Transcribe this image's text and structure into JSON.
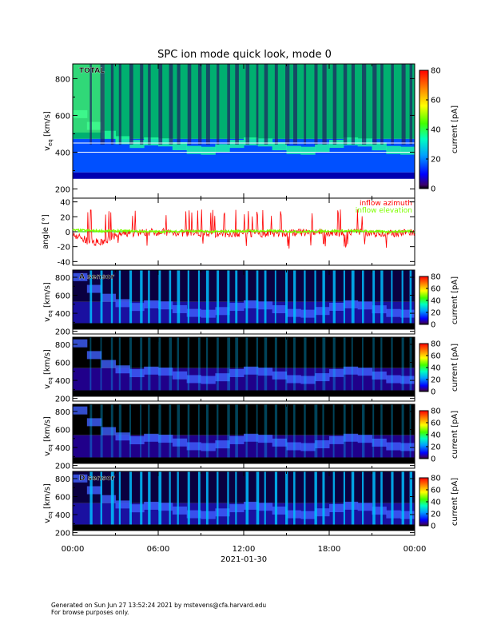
{
  "title": "SPC ion mode quick look, mode 0",
  "footer": {
    "line1": "Generated on Sun Jun 27 13:52:24 2021 by mstevens@cfa.harvard.edu",
    "line2": "For browse purposes only."
  },
  "time_axis": {
    "ticks": [
      "00:00",
      "06:00",
      "12:00",
      "18:00",
      "00:00"
    ],
    "date_label": "2021-01-30",
    "range_hours": [
      0,
      24
    ]
  },
  "colors": {
    "inflow_azimuth": "#ff0000",
    "inflow_elevation": "#7fff00",
    "reference_line": "#00cc00"
  },
  "chart_data": [
    {
      "type": "heatmap",
      "panel_label": "TOTAL",
      "ylabel": "v",
      "ylabel_sub": "eq",
      "ylabel_unit": "[km/s]",
      "ylim": [
        150,
        880
      ],
      "yticks": [
        "200",
        "400",
        "600",
        "800"
      ],
      "colorbar": {
        "label": "current [pA]",
        "range": [
          0,
          80
        ],
        "ticks": [
          "0",
          "20",
          "40",
          "60",
          "80"
        ]
      },
      "white_lines_kms": [
        400,
        450
      ],
      "intensity": "high",
      "cutoff_kms": 290,
      "peak_kms": 420
    },
    {
      "type": "line",
      "ylabel": "angle [°]",
      "ylim": [
        -45,
        45
      ],
      "yticks": [
        "-40",
        "-20",
        "0",
        "20",
        "40"
      ],
      "legend_placement": "top-right",
      "series": [
        {
          "name": "inflow azimuth",
          "color": "#ff0000",
          "x": [
            0,
            1,
            2,
            3,
            4,
            6,
            8,
            10,
            12,
            14,
            16,
            18,
            20,
            22,
            24
          ],
          "y": [
            -3,
            -12,
            -15,
            -5,
            -2,
            0,
            -2,
            -3,
            -2,
            -3,
            -1,
            -2,
            -1,
            -3,
            -1
          ]
        },
        {
          "name": "inflow elevation",
          "color": "#7fff00",
          "x": [
            0,
            2,
            4,
            6,
            8,
            10,
            12,
            14,
            16,
            18,
            20,
            22,
            24
          ],
          "y": [
            2,
            1,
            1,
            0,
            1,
            0,
            1,
            1,
            0,
            1,
            1,
            0,
            1
          ]
        }
      ]
    },
    {
      "type": "heatmap",
      "panel_label": "A sensor",
      "ylabel": "v",
      "ylabel_sub": "eq",
      "ylabel_unit": "[km/s]",
      "ylim": [
        170,
        880
      ],
      "yticks": [
        "200",
        "400",
        "600",
        "800"
      ],
      "colorbar": {
        "label": "current [pA]",
        "range": [
          0,
          80
        ],
        "ticks": [
          "0",
          "20",
          "40",
          "60",
          "80"
        ]
      },
      "intensity": "low",
      "cutoff_kms": 290,
      "peak_kms": 420
    },
    {
      "type": "heatmap",
      "panel_label": "",
      "ylabel": "v",
      "ylabel_sub": "eq",
      "ylabel_unit": "[km/s]",
      "ylim": [
        170,
        880
      ],
      "yticks": [
        "200",
        "400",
        "600",
        "800"
      ],
      "colorbar": {
        "label": "current [pA]",
        "range": [
          0,
          80
        ],
        "ticks": [
          "0",
          "20",
          "40",
          "60",
          "80"
        ]
      },
      "intensity": "dark",
      "cutoff_kms": 290,
      "peak_kms": 430
    },
    {
      "type": "heatmap",
      "panel_label": "",
      "ylabel": "v",
      "ylabel_sub": "eq",
      "ylabel_unit": "[km/s]",
      "ylim": [
        170,
        880
      ],
      "yticks": [
        "200",
        "400",
        "600",
        "800"
      ],
      "colorbar": {
        "label": "current [pA]",
        "range": [
          0,
          80
        ],
        "ticks": [
          "0",
          "20",
          "40",
          "60",
          "80"
        ]
      },
      "intensity": "dark",
      "cutoff_kms": 290,
      "peak_kms": 430
    },
    {
      "type": "heatmap",
      "panel_label": "D sensor",
      "ylabel": "v",
      "ylabel_sub": "eq",
      "ylabel_unit": "[km/s]",
      "ylim": [
        170,
        880
      ],
      "yticks": [
        "200",
        "400",
        "600",
        "800"
      ],
      "colorbar": {
        "label": "current [pA]",
        "range": [
          0,
          80
        ],
        "ticks": [
          "0",
          "20",
          "40",
          "60",
          "80"
        ]
      },
      "intensity": "low",
      "cutoff_kms": 290,
      "peak_kms": 420
    }
  ]
}
